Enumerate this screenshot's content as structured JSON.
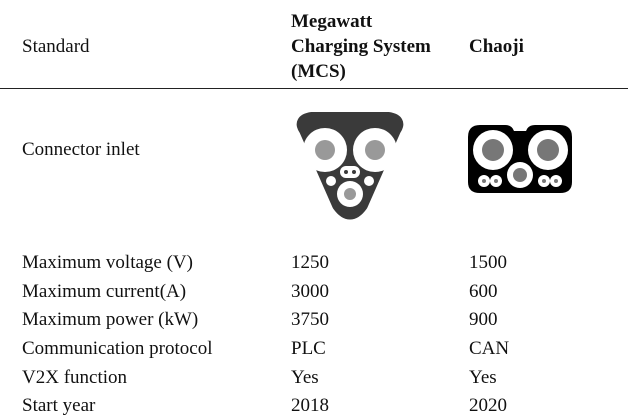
{
  "table": {
    "header": [
      "Standard",
      "Megawatt Charging System (MCS)",
      "Chaoji"
    ],
    "rows": [
      [
        "Connector inlet"
      ],
      [
        "Maximum voltage (V)",
        "1250",
        "1500"
      ],
      [
        "Maximum current(A)",
        "3000",
        "600"
      ],
      [
        "Maximum power (kW)",
        "3750",
        "900"
      ],
      [
        "Communication protocol",
        "PLC",
        "CAN"
      ],
      [
        "V2X function",
        "Yes",
        "Yes"
      ],
      [
        "Start year",
        "2018",
        "2020"
      ]
    ]
  }
}
